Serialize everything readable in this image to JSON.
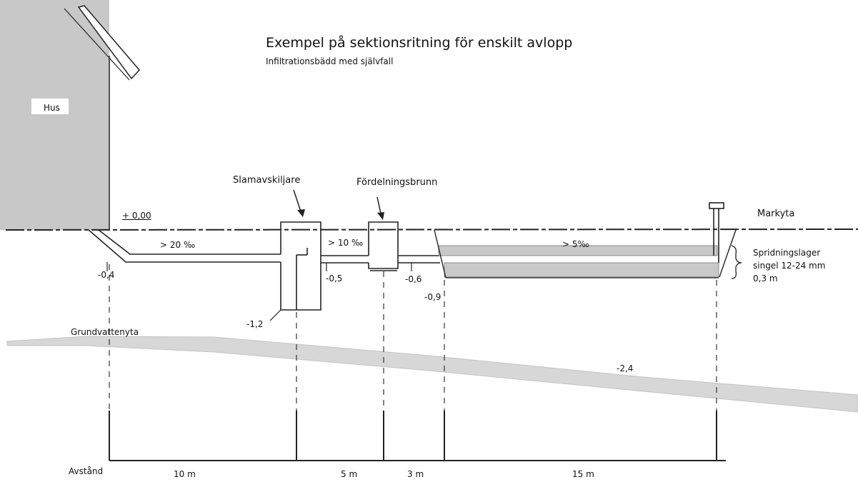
{
  "title": "Exempel på sektionsritning för enskilt avlopp",
  "subtitle": "Infiltrationsbädd med självfall",
  "labels": {
    "house": "Hus",
    "septic_tank": "Slamavskiljare",
    "distribution_well": "Fördelningsbrunn",
    "ground_surface": "Markyta",
    "groundwater_surface": "Grundvattenyta",
    "spreading_layer": [
      "Spridningslager",
      "singel 12-24 mm",
      "0,3 m"
    ],
    "distance": "Avstånd"
  },
  "levels": {
    "zero": "+ 0,00",
    "pipe_start": "-0,4",
    "tank_outlet": "-0,5",
    "well_outlet": "-0,6",
    "bed_bottom": "-0,9",
    "tank_bottom": "-1,2",
    "groundwater": "-2,4"
  },
  "slopes": {
    "first": "> 20 ‰",
    "second": "> 10 ‰",
    "bed": "> 5‰"
  },
  "distances": [
    "10 m",
    "5 m",
    "3 m",
    "15 m"
  ],
  "colors": {
    "line": "#1a1a1a",
    "house_fill": "#c8c8c8",
    "gravel_fill": "#c9c9c9",
    "groundwater_fill": "#d7d7d7"
  }
}
